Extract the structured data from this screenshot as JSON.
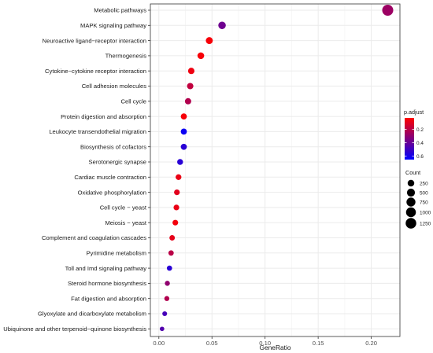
{
  "chart_data": {
    "type": "scatter",
    "title": "",
    "xlabel": "GeneRatio",
    "ylabel": "",
    "xlim": [
      -0.008,
      0.227
    ],
    "x_ticks": [
      0.0,
      0.05,
      0.1,
      0.15,
      0.2
    ],
    "x_tick_labels": [
      "0.00",
      "0.05",
      "0.10",
      "0.15",
      "0.20"
    ],
    "grid": true,
    "legend_position": "right",
    "points": [
      {
        "term": "Metabolic pathways",
        "gene_ratio": 0.2155,
        "p_adjust": 0.27,
        "count": 1400
      },
      {
        "term": "MAPK signaling pathway",
        "gene_ratio": 0.0595,
        "p_adjust": 0.38,
        "count": 400
      },
      {
        "term": "Neuroactive ligand−receptor interaction",
        "gene_ratio": 0.0475,
        "p_adjust": 0.05,
        "count": 300
      },
      {
        "term": "Thermogenesis",
        "gene_ratio": 0.0395,
        "p_adjust": 0.05,
        "count": 260
      },
      {
        "term": "Cytokine−cytokine receptor interaction",
        "gene_ratio": 0.0305,
        "p_adjust": 0.07,
        "count": 215
      },
      {
        "term": "Cell adhesion molecules",
        "gene_ratio": 0.0295,
        "p_adjust": 0.18,
        "count": 205
      },
      {
        "term": "Cell cycle",
        "gene_ratio": 0.0275,
        "p_adjust": 0.22,
        "count": 195
      },
      {
        "term": "Protein digestion and absorption",
        "gene_ratio": 0.0235,
        "p_adjust": 0.05,
        "count": 170
      },
      {
        "term": "Leukocyte transendothelial migration",
        "gene_ratio": 0.0235,
        "p_adjust": 0.62,
        "count": 170
      },
      {
        "term": "Biosynthesis of cofactors",
        "gene_ratio": 0.0235,
        "p_adjust": 0.55,
        "count": 170
      },
      {
        "term": "Serotonergic synapse",
        "gene_ratio": 0.02,
        "p_adjust": 0.55,
        "count": 145
      },
      {
        "term": "Cardiac muscle contraction",
        "gene_ratio": 0.0185,
        "p_adjust": 0.08,
        "count": 135
      },
      {
        "term": "Oxidative phosphorylation",
        "gene_ratio": 0.017,
        "p_adjust": 0.1,
        "count": 125
      },
      {
        "term": "Cell cycle − yeast",
        "gene_ratio": 0.0165,
        "p_adjust": 0.08,
        "count": 120
      },
      {
        "term": "Meiosis − yeast",
        "gene_ratio": 0.0155,
        "p_adjust": 0.06,
        "count": 113
      },
      {
        "term": "Complement and coagulation cascades",
        "gene_ratio": 0.0125,
        "p_adjust": 0.09,
        "count": 95
      },
      {
        "term": "Pyrimidine metabolism",
        "gene_ratio": 0.0115,
        "p_adjust": 0.2,
        "count": 88
      },
      {
        "term": "Toll and Imd signaling pathway",
        "gene_ratio": 0.01,
        "p_adjust": 0.55,
        "count": 78
      },
      {
        "term": "Steroid hormone biosynthesis",
        "gene_ratio": 0.008,
        "p_adjust": 0.3,
        "count": 63
      },
      {
        "term": "Fat digestion and absorption",
        "gene_ratio": 0.0075,
        "p_adjust": 0.22,
        "count": 58
      },
      {
        "term": "Glyoxylate and dicarboxylate metabolism",
        "gene_ratio": 0.0055,
        "p_adjust": 0.48,
        "count": 45
      },
      {
        "term": "Ubiquinone and other terpenoid−quinone biosynthesis",
        "gene_ratio": 0.003,
        "p_adjust": 0.45,
        "count": 25
      }
    ],
    "color_legend": {
      "title": "p.adjust",
      "range": [
        0.03,
        0.65
      ],
      "ticks": [
        0.2,
        0.4,
        0.6
      ],
      "tick_labels": [
        "0.2",
        "0.4",
        "0.6"
      ],
      "colors": {
        "low": "#ff0000",
        "high": "#0000ff"
      }
    },
    "size_legend": {
      "title": "Count",
      "values": [
        250,
        500,
        750,
        1000,
        1250
      ],
      "labels": [
        "250",
        "500",
        "750",
        "1000",
        "1250"
      ],
      "max": 1400
    },
    "colors": {
      "panel_bg": "#ffffff",
      "grid_major": "#ebebeb",
      "grid_minor": "#f5f5f5",
      "panel_border": "#333333"
    }
  }
}
